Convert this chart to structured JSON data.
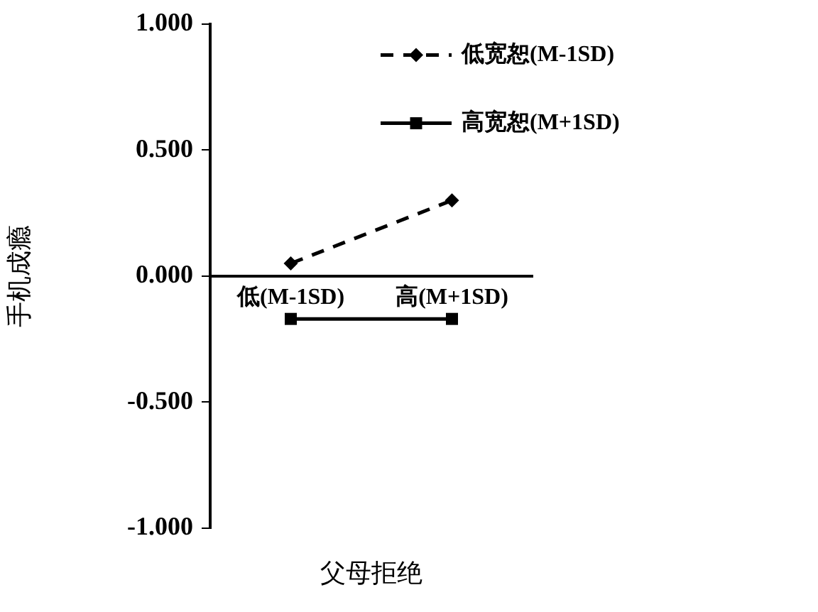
{
  "chart_data": {
    "type": "line",
    "xlabel": "父母拒绝",
    "ylabel": "手机成瘾",
    "categories": [
      "低(M-1SD)",
      "高(M+1SD)"
    ],
    "series": [
      {
        "name": "低宽恕(M-1SD)",
        "color": "#000000",
        "values": [
          0.05,
          0.3
        ],
        "marker": "diamond",
        "line_style": "dashed"
      },
      {
        "name": "高宽恕(M+1SD)",
        "color": "#000000",
        "values": [
          -0.17,
          -0.17
        ],
        "marker": "square",
        "line_style": "solid"
      }
    ],
    "ylim": [
      -1,
      1
    ],
    "yticks": [
      {
        "value": -1,
        "label": "-1.000"
      },
      {
        "value": -0.5,
        "label": "-0.500"
      },
      {
        "value": 0,
        "label": "0.000"
      },
      {
        "value": 0.5,
        "label": "0.500"
      },
      {
        "value": 1,
        "label": "1.000"
      }
    ],
    "grid": false,
    "legend": "top right"
  }
}
